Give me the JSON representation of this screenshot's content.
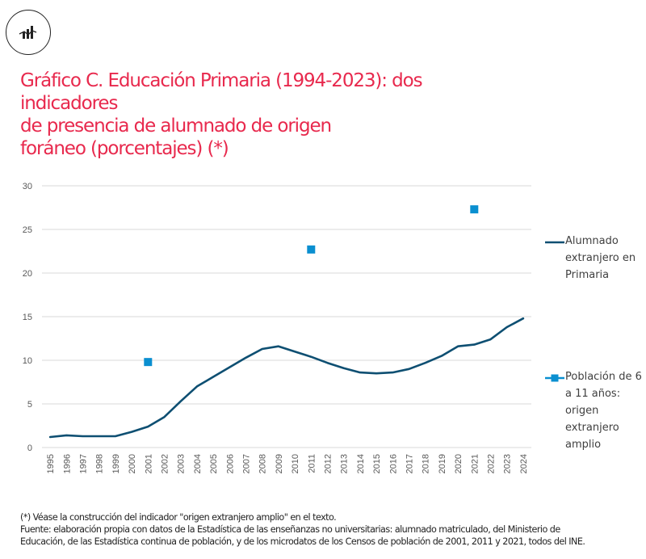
{
  "header": {
    "logo_icon": "bar-line-chart-icon",
    "title_lines": [
      "Gráfico C. Educación Primaria (1994-2023): dos indicadores",
      "de presencia de alumnado de origen",
      "foráneo (porcentajes)  (*)"
    ]
  },
  "colors": {
    "title": "#e8294d",
    "line_series": "#0e4f72",
    "marker_series": "#0a8fd0",
    "grid": "#d9d9d9"
  },
  "chart_data": {
    "type": "line",
    "title": "Gráfico C. Educación Primaria (1994-2023): dos indicadores de presencia de alumnado de origen foráneo (porcentajes) (*)",
    "xlabel": "",
    "ylabel": "",
    "ylim": [
      0,
      30
    ],
    "yticks": [
      0,
      5,
      10,
      15,
      20,
      25,
      30
    ],
    "grid": true,
    "legend_position": "right",
    "categories": [
      "1995",
      "1996",
      "1997",
      "1998",
      "1999",
      "2000",
      "2001",
      "2002",
      "2003",
      "2004",
      "2005",
      "2006",
      "2007",
      "2008",
      "2009",
      "2010",
      "2011",
      "2012",
      "2013",
      "2014",
      "2015",
      "2016",
      "2017",
      "2018",
      "2019",
      "2020",
      "2021",
      "2022",
      "2023",
      "2024"
    ],
    "series": [
      {
        "name": "Alumnado extranjero en Primaria",
        "style": "line",
        "values": [
          1.2,
          1.4,
          1.3,
          1.3,
          1.3,
          1.8,
          2.4,
          3.5,
          5.3,
          7.0,
          8.1,
          9.2,
          10.3,
          11.3,
          11.6,
          11.0,
          10.4,
          9.7,
          9.1,
          8.6,
          8.5,
          8.6,
          9.0,
          9.7,
          10.5,
          11.6,
          11.8,
          12.4,
          13.8,
          14.8
        ]
      },
      {
        "name": "Población de 6 a 11 años: origen extranjero amplio",
        "style": "marker",
        "points": [
          {
            "x": "2001",
            "y": 9.8
          },
          {
            "x": "2011",
            "y": 22.7
          },
          {
            "x": "2021",
            "y": 27.3
          }
        ]
      }
    ]
  },
  "legend": {
    "items": [
      {
        "lines": [
          "Alumnado",
          "extranjero en",
          "Primaria"
        ]
      },
      {
        "lines": [
          "Población de 6",
          "a 11 años:",
          "origen",
          "extranjero",
          "amplio"
        ]
      }
    ]
  },
  "footnote": {
    "lines": [
      "(*) Véase la construcción del indicador \"origen extranjero amplio\" en el texto.",
      "Fuente: elaboración propia con datos de la Estadística de las enseñanzas no universitarias: alumnado matriculado, del Ministerio de",
      "Educación, de las Estadística continua de población, y de los microdatos de los Censos de población de 2001, 2011 y 2021, todos del INE."
    ]
  }
}
